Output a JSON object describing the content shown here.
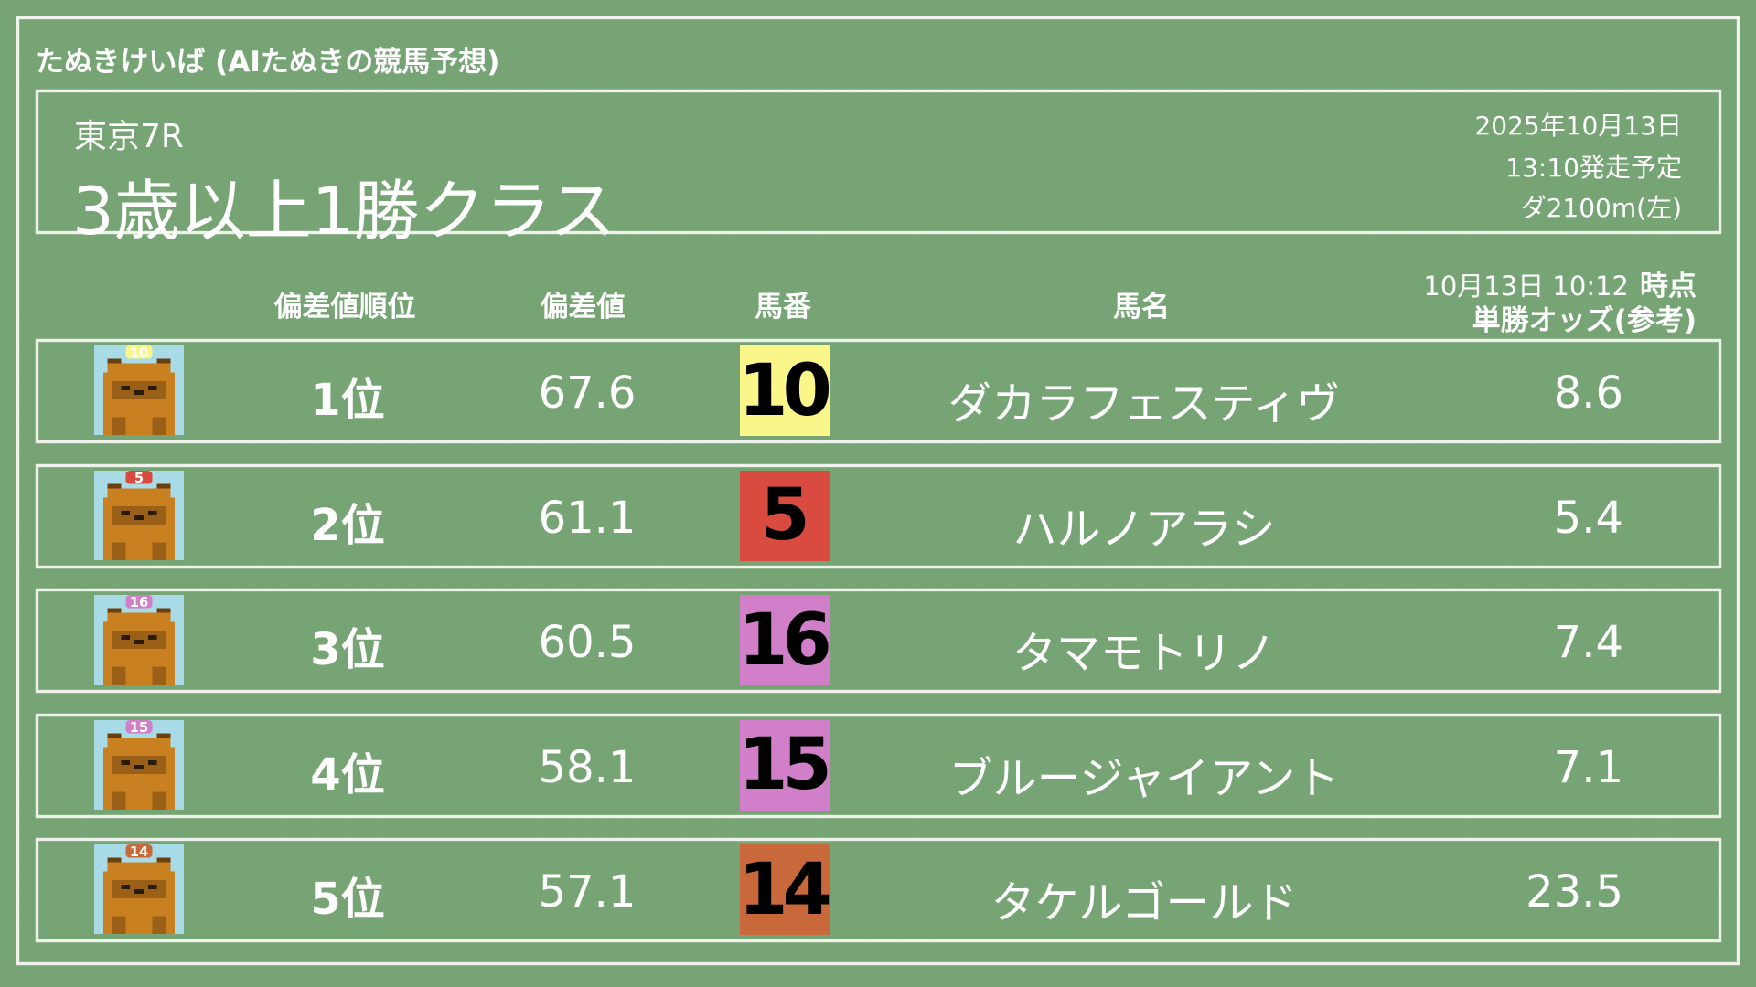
{
  "app_title": "たぬきけいば (AIたぬきの競馬予想)",
  "race": {
    "venue_race": "東京7R",
    "name": "3歳以上1勝クラス",
    "date": "2025年10月13日",
    "post_time": "13:10発走予定",
    "course": "ダ2100m(左)"
  },
  "columns": {
    "rank": "偏差値順位",
    "deviation": "偏差値",
    "number": "馬番",
    "horse_name": "馬名",
    "odds_time": "10月13日 10:12",
    "odds_time_suffix": "時点",
    "odds": "単勝オッズ(参考)"
  },
  "rows": [
    {
      "rank": "1位",
      "deviation": "67.6",
      "number": "10",
      "name": "ダカラフェスティヴ",
      "odds": "8.6",
      "color": "#fbf68a",
      "avatar": "tanuki-icon"
    },
    {
      "rank": "2位",
      "deviation": "61.1",
      "number": "5",
      "name": "ハルノアラシ",
      "odds": "5.4",
      "color": "#d94b3f",
      "avatar": "tanuki-icon"
    },
    {
      "rank": "3位",
      "deviation": "60.5",
      "number": "16",
      "name": "タマモトリノ",
      "odds": "7.4",
      "color": "#d07fc8",
      "avatar": "tanuki-icon"
    },
    {
      "rank": "4位",
      "deviation": "58.1",
      "number": "15",
      "name": "ブルージャイアント",
      "odds": "7.1",
      "color": "#d07fc8",
      "avatar": "tanuki-icon"
    },
    {
      "rank": "5位",
      "deviation": "57.1",
      "number": "14",
      "name": "タケルゴールド",
      "odds": "23.5",
      "color": "#c9683b",
      "avatar": "tanuki-icon"
    }
  ]
}
